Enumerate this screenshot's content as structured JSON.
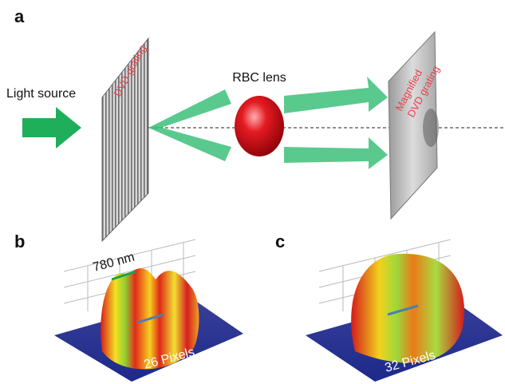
{
  "panel_a": {
    "label": "a",
    "source": "Light source",
    "grating": "DVD grating",
    "lens": "RBC lens",
    "image_line1": "Magnified",
    "image_line2": "DVD grating"
  },
  "panel_b": {
    "label": "b",
    "period": "780 nm",
    "pixels": "26 Pixels"
  },
  "panel_c": {
    "label": "c",
    "pixels": "32 Pixels"
  }
}
